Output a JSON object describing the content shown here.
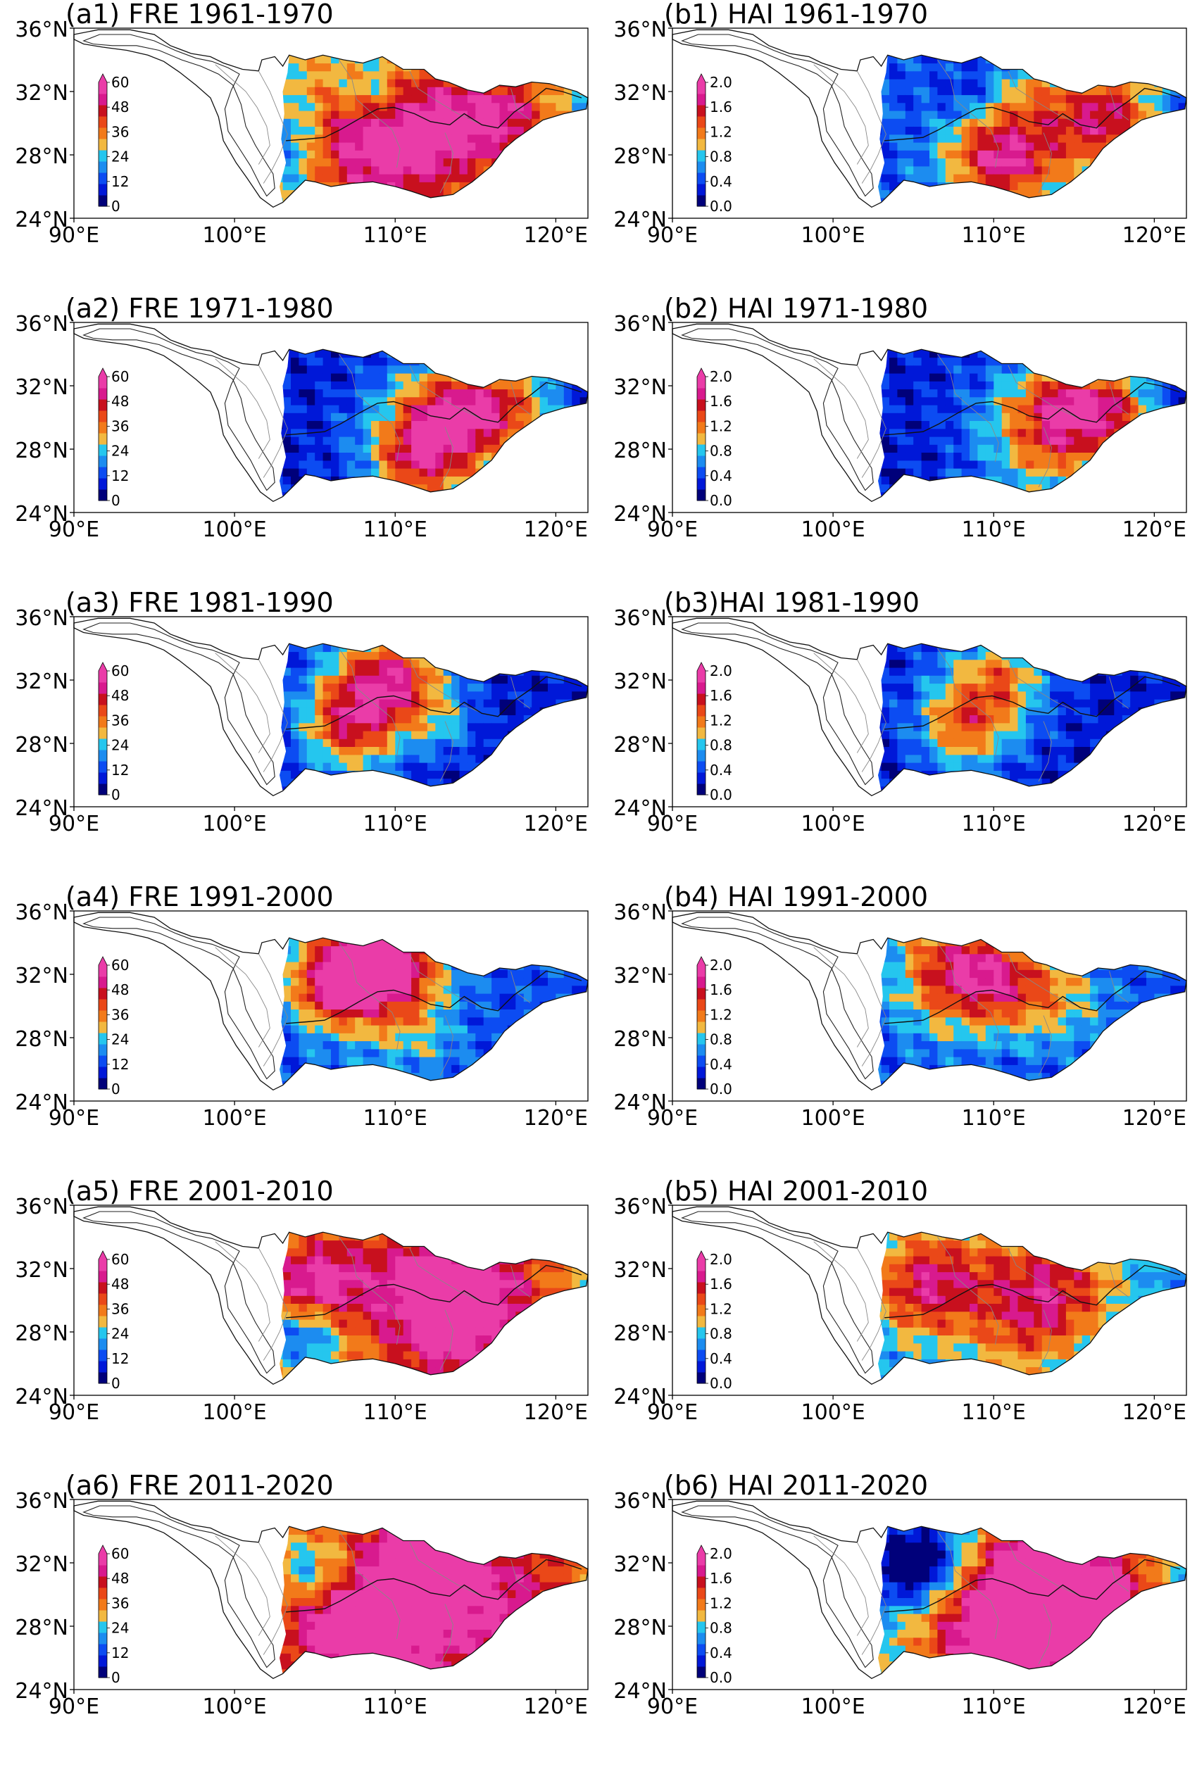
{
  "figure": {
    "panels": [
      {
        "id": "a1",
        "title": "(a1) FRE 1961-1970",
        "variable": "FRE",
        "period": "1961-1970",
        "cbar": [
          "0",
          "12",
          "24",
          "36",
          "48",
          "60"
        ]
      },
      {
        "id": "b1",
        "title": "(b1) HAI 1961-1970",
        "variable": "HAI",
        "period": "1961-1970",
        "cbar": [
          "0.0",
          "0.4",
          "0.8",
          "1.2",
          "1.6",
          "2.0"
        ]
      },
      {
        "id": "a2",
        "title": "(a2) FRE 1971-1980",
        "variable": "FRE",
        "period": "1971-1980",
        "cbar": [
          "0",
          "12",
          "24",
          "36",
          "48",
          "60"
        ]
      },
      {
        "id": "b2",
        "title": "(b2) HAI 1971-1980",
        "variable": "HAI",
        "period": "1971-1980",
        "cbar": [
          "0.0",
          "0.4",
          "0.8",
          "1.2",
          "1.6",
          "2.0"
        ]
      },
      {
        "id": "a3",
        "title": "(a3) FRE 1981-1990",
        "variable": "FRE",
        "period": "1981-1990",
        "cbar": [
          "0",
          "12",
          "24",
          "36",
          "48",
          "60"
        ]
      },
      {
        "id": "b3",
        "title": "(b3)HAI 1981-1990",
        "variable": "HAI",
        "period": "1981-1990",
        "cbar": [
          "0.0",
          "0.4",
          "0.8",
          "1.2",
          "1.6",
          "2.0"
        ]
      },
      {
        "id": "a4",
        "title": "(a4) FRE 1991-2000",
        "variable": "FRE",
        "period": "1991-2000",
        "cbar": [
          "0",
          "12",
          "24",
          "36",
          "48",
          "60"
        ]
      },
      {
        "id": "b4",
        "title": "(b4) HAI 1991-2000",
        "variable": "HAI",
        "period": "1991-2000",
        "cbar": [
          "0.0",
          "0.4",
          "0.8",
          "1.2",
          "1.6",
          "2.0"
        ]
      },
      {
        "id": "a5",
        "title": "(a5) FRE 2001-2010",
        "variable": "FRE",
        "period": "2001-2010",
        "cbar": [
          "0",
          "12",
          "24",
          "36",
          "48",
          "60"
        ]
      },
      {
        "id": "b5",
        "title": "(b5) HAI 2001-2010",
        "variable": "HAI",
        "period": "2001-2010",
        "cbar": [
          "0.0",
          "0.4",
          "0.8",
          "1.2",
          "1.6",
          "2.0"
        ]
      },
      {
        "id": "a6",
        "title": "(a6) FRE 2011-2020",
        "variable": "FRE",
        "period": "2011-2020",
        "cbar": [
          "0",
          "12",
          "24",
          "36",
          "48",
          "60"
        ]
      },
      {
        "id": "b6",
        "title": "(b6) HAI 2011-2020",
        "variable": "HAI",
        "period": "2011-2020",
        "cbar": [
          "0.0",
          "0.4",
          "0.8",
          "1.2",
          "1.6",
          "2.0"
        ]
      }
    ],
    "axes": {
      "lat_ticks": [
        "24°N",
        "28°N",
        "32°N",
        "36°N"
      ],
      "lon_ticks": [
        "90°E",
        "100°E",
        "110°E",
        "120°E"
      ],
      "lon_range": [
        90,
        122
      ],
      "lat_range": [
        24,
        36
      ]
    },
    "colormap": [
      "#00007a",
      "#0018d8",
      "#0c4cf2",
      "#1c8cf0",
      "#25c6ee",
      "#f2b840",
      "#f27a1a",
      "#ea4818",
      "#c8101e",
      "#d81a8e",
      "#ea3ca8"
    ]
  }
}
